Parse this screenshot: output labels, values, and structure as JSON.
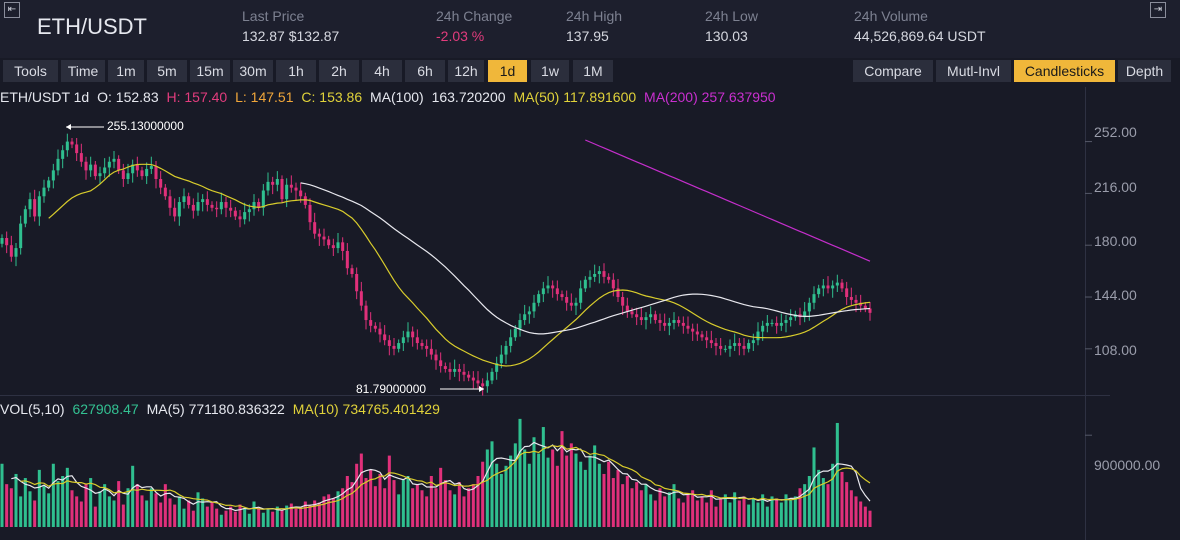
{
  "header": {
    "pair": "ETH/USDT",
    "stats": [
      {
        "label": "Last Price",
        "value": "132.87 $132.87",
        "negative": false
      },
      {
        "label": "24h Change",
        "value": "-2.03 %",
        "negative": true
      },
      {
        "label": "24h High",
        "value": "137.95",
        "negative": false
      },
      {
        "label": "24h Low",
        "value": "130.03",
        "negative": false
      },
      {
        "label": "24h Volume",
        "value": "44,526,869.64 USDT",
        "negative": false
      }
    ]
  },
  "toolbar": {
    "left": [
      {
        "label": "Tools",
        "active": false
      },
      {
        "label": "Time",
        "active": false
      },
      {
        "label": "1m",
        "active": false
      },
      {
        "label": "5m",
        "active": false
      },
      {
        "label": "15m",
        "active": false
      },
      {
        "label": "30m",
        "active": false
      },
      {
        "label": "1h",
        "active": false
      },
      {
        "label": "2h",
        "active": false
      },
      {
        "label": "4h",
        "active": false
      },
      {
        "label": "6h",
        "active": false
      },
      {
        "label": "12h",
        "active": false
      },
      {
        "label": "1d",
        "active": true
      },
      {
        "label": "1w",
        "active": false
      },
      {
        "label": "1M",
        "active": false
      }
    ],
    "right": [
      {
        "label": "Compare",
        "active": false
      },
      {
        "label": "Mutl-Invl",
        "active": false
      },
      {
        "label": "Candlesticks",
        "active": true
      },
      {
        "label": "Depth",
        "active": false
      }
    ]
  },
  "legend": {
    "symbol": "ETH/USDT 1d",
    "open": "O: 152.83",
    "high": "H: 157.40",
    "low": "L: 147.51",
    "close": "C: 153.86",
    "ma100_label": "MA(100)",
    "ma100_value": "163.720200",
    "ma50": "MA(50)  117.891600",
    "ma200": "MA(200)  257.637950"
  },
  "vol_legend": {
    "label": "VOL(5,10)",
    "value": "627908.47",
    "ma5": "MA(5)  771180.836322",
    "ma10": "MA(10)  734765.401429"
  },
  "annotations": {
    "high": "255.13000000",
    "low": "81.79000000"
  },
  "colors": {
    "up": "#2fbf8f",
    "down": "#e0307a",
    "ma50": "#d8cc2c",
    "ma100": "#e8e8ee",
    "ma200": "#c42ecb",
    "active": "#f0b73a"
  },
  "chart_data": {
    "type": "candlestick",
    "interval": "1d",
    "price_axis": {
      "ticks": [
        "252.00",
        "216.00",
        "180.00",
        "144.00",
        "108.00"
      ],
      "range": [
        78,
        267
      ]
    },
    "volume_axis": {
      "ticks": [
        "900000.00"
      ],
      "range": [
        0,
        1350000
      ]
    },
    "close": [
      185,
      180,
      172,
      178,
      195,
      205,
      212,
      200,
      214,
      220,
      225,
      232,
      240,
      246,
      252,
      250,
      244,
      238,
      232,
      236,
      228,
      230,
      234,
      238,
      240,
      232,
      226,
      230,
      236,
      232,
      228,
      233,
      235,
      226,
      220,
      214,
      206,
      200,
      210,
      214,
      208,
      204,
      210,
      212,
      208,
      206,
      205,
      210,
      206,
      204,
      200,
      198,
      203,
      205,
      210,
      206,
      218,
      224,
      222,
      226,
      212,
      222,
      220,
      218,
      214,
      208,
      196,
      188,
      186,
      184,
      180,
      178,
      182,
      176,
      164,
      160,
      148,
      138,
      128,
      124,
      122,
      118,
      114,
      110,
      108,
      112,
      116,
      120,
      116,
      112,
      110,
      108,
      104,
      100,
      96,
      94,
      92,
      94,
      92,
      90,
      88,
      86,
      84,
      82,
      86,
      92,
      98,
      104,
      110,
      116,
      122,
      128,
      132,
      134,
      140,
      146,
      150,
      152,
      150,
      146,
      144,
      140,
      138,
      140,
      150,
      156,
      158,
      160,
      162,
      158,
      156,
      150,
      144,
      138,
      134,
      132,
      130,
      128,
      130,
      132,
      128,
      126,
      124,
      126,
      128,
      126,
      124,
      122,
      120,
      118,
      116,
      114,
      112,
      110,
      108,
      108,
      110,
      112,
      110,
      108,
      112,
      114,
      120,
      124,
      126,
      126,
      124,
      126,
      128,
      130,
      132,
      130,
      134,
      140,
      146,
      150,
      152,
      150,
      152,
      154,
      150,
      144,
      142,
      140,
      138,
      136,
      133
    ],
    "volume": [
      620000,
      420000,
      380000,
      520000,
      300000,
      480000,
      350000,
      260000,
      560000,
      400000,
      330000,
      620000,
      450000,
      500000,
      580000,
      360000,
      300000,
      250000,
      420000,
      480000,
      200000,
      350000,
      420000,
      300000,
      260000,
      450000,
      220000,
      380000,
      600000,
      420000,
      310000,
      260000,
      380000,
      330000,
      240000,
      420000,
      280000,
      220000,
      300000,
      180000,
      260000,
      160000,
      340000,
      280000,
      200000,
      240000,
      180000,
      120000,
      160000,
      200000,
      150000,
      220000,
      180000,
      130000,
      250000,
      190000,
      140000,
      170000,
      150000,
      200000,
      160000,
      210000,
      230000,
      180000,
      190000,
      250000,
      220000,
      260000,
      240000,
      300000,
      320000,
      280000,
      350000,
      380000,
      500000,
      440000,
      620000,
      720000,
      480000,
      560000,
      400000,
      520000,
      380000,
      700000,
      460000,
      320000,
      460000,
      500000,
      380000,
      420000,
      360000,
      300000,
      500000,
      380000,
      580000,
      460000,
      360000,
      320000,
      440000,
      300000,
      380000,
      420000,
      500000,
      640000,
      760000,
      840000,
      620000,
      520000,
      600000,
      700000,
      820000,
      1060000,
      760000,
      620000,
      880000,
      720000,
      980000,
      680000,
      760000,
      600000,
      940000,
      700000,
      820000,
      720000,
      640000,
      560000,
      700000,
      800000,
      620000,
      520000,
      640000,
      480000,
      560000,
      420000,
      500000,
      380000,
      440000,
      360000,
      420000,
      320000,
      260000,
      380000,
      300000,
      340000,
      420000,
      280000,
      240000,
      320000,
      360000,
      260000,
      300000,
      240000,
      360000,
      200000,
      280000,
      320000,
      240000,
      340000,
      260000,
      300000,
      220000,
      280000,
      240000,
      320000,
      200000,
      300000,
      280000,
      240000,
      320000,
      260000,
      300000,
      380000,
      420000,
      500000,
      780000,
      560000,
      480000,
      420000,
      620000,
      1020000,
      540000,
      440000,
      360000,
      300000,
      250000,
      200000,
      160000
    ]
  }
}
